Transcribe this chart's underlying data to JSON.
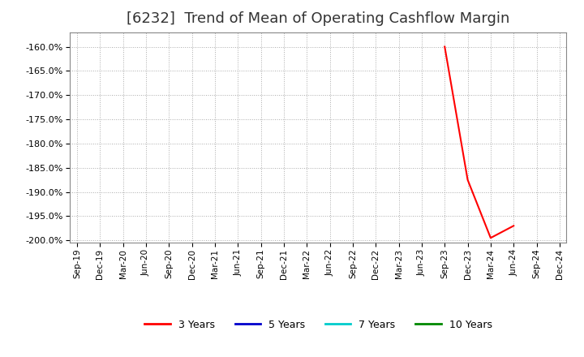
{
  "title": "[6232]  Trend of Mean of Operating Cashflow Margin",
  "series": {
    "3 Years": {
      "color": "#FF0000",
      "linewidth": 1.5,
      "dates": [
        "Sep-23",
        "Dec-23",
        "Mar-24",
        "Jun-24"
      ],
      "values": [
        -1.6,
        -1.875,
        -1.995,
        -1.97
      ]
    },
    "5 Years": {
      "color": "#0000CC",
      "linewidth": 1.5,
      "dates": [],
      "values": []
    },
    "7 Years": {
      "color": "#00CCCC",
      "linewidth": 1.5,
      "dates": [],
      "values": []
    },
    "10 Years": {
      "color": "#008800",
      "linewidth": 1.5,
      "dates": [],
      "values": []
    }
  },
  "xlim_start": "Sep-19",
  "xlim_end": "Dec-24",
  "ylim": [
    -2.005,
    -1.57
  ],
  "yticks": [
    -1.6,
    -1.65,
    -1.7,
    -1.75,
    -1.8,
    -1.85,
    -1.9,
    -1.95,
    -2.0
  ],
  "xticks": [
    "Sep-19",
    "Dec-19",
    "Mar-20",
    "Jun-20",
    "Sep-20",
    "Dec-20",
    "Mar-21",
    "Jun-21",
    "Sep-21",
    "Dec-21",
    "Mar-22",
    "Jun-22",
    "Sep-22",
    "Dec-22",
    "Mar-23",
    "Jun-23",
    "Sep-23",
    "Dec-23",
    "Mar-24",
    "Jun-24",
    "Sep-24",
    "Dec-24"
  ],
  "background_color": "#FFFFFF",
  "plot_bg_color": "#FFFFFF",
  "grid_color": "#AAAAAA",
  "title_fontsize": 13,
  "title_fontweight": "normal",
  "legend_labels": [
    "3 Years",
    "5 Years",
    "7 Years",
    "10 Years"
  ],
  "legend_colors": [
    "#FF0000",
    "#0000CC",
    "#00CCCC",
    "#008800"
  ]
}
